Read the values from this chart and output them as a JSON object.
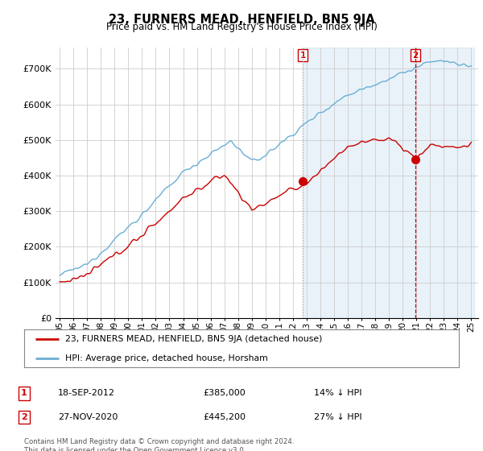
{
  "title": "23, FURNERS MEAD, HENFIELD, BN5 9JA",
  "subtitle": "Price paid vs. HM Land Registry's House Price Index (HPI)",
  "legend_line1": "23, FURNERS MEAD, HENFIELD, BN5 9JA (detached house)",
  "legend_line2": "HPI: Average price, detached house, Horsham",
  "sale1_label": "1",
  "sale1_date": "18-SEP-2012",
  "sale1_price": "£385,000",
  "sale1_hpi": "14% ↓ HPI",
  "sale2_label": "2",
  "sale2_date": "27-NOV-2020",
  "sale2_price": "£445,200",
  "sale2_hpi": "27% ↓ HPI",
  "footer": "Contains HM Land Registry data © Crown copyright and database right 2024.\nThis data is licensed under the Open Government Licence v3.0.",
  "ylim": [
    0,
    760000
  ],
  "yticks": [
    0,
    100000,
    200000,
    300000,
    400000,
    500000,
    600000,
    700000
  ],
  "ytick_labels": [
    "£0",
    "£100K",
    "£200K",
    "£300K",
    "£400K",
    "£500K",
    "£600K",
    "£700K"
  ],
  "hpi_color": "#6aaed6",
  "price_color": "#cc0000",
  "vline1_color": "#aaaaaa",
  "vline2_color": "#cc0000",
  "shade_color": "#ddeeff",
  "background_color": "#ffffff",
  "grid_color": "#cccccc",
  "sale1_year": 2012.72,
  "sale1_price_val": 385000,
  "sale2_year": 2020.91,
  "sale2_price_val": 445200
}
